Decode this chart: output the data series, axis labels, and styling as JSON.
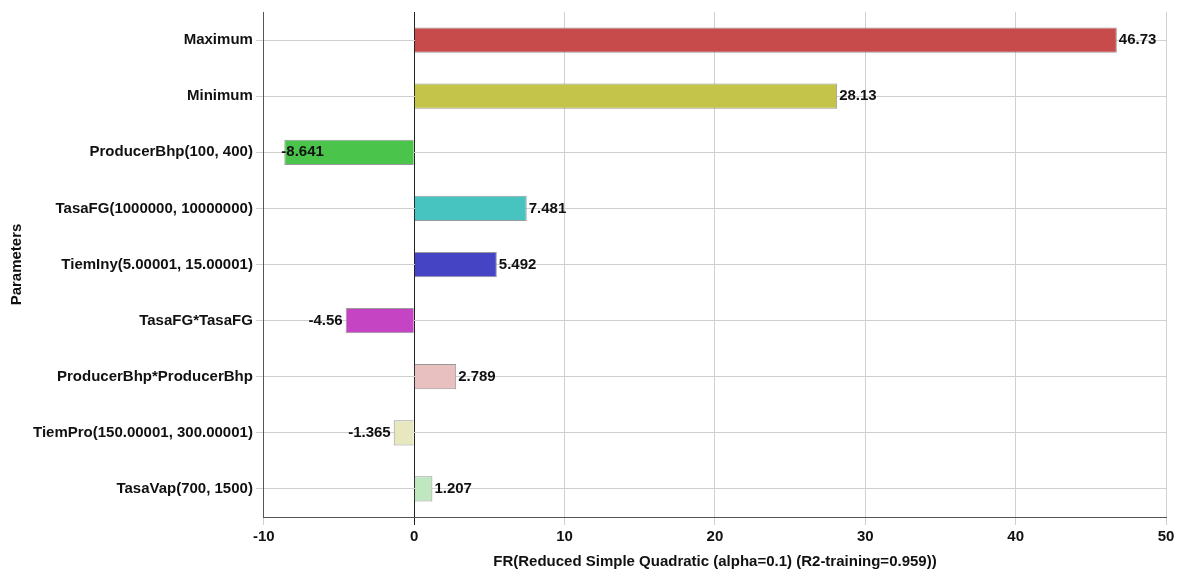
{
  "chart_data": {
    "type": "bar",
    "orientation": "horizontal",
    "xlabel": "FR(Reduced Simple Quadratic (alpha=0.1) (R2-training=0.959))",
    "ylabel": "Parameters",
    "categories": [
      "Maximum",
      "Minimum",
      "ProducerBhp(100, 400)",
      "TasaFG(1000000, 10000000)",
      "TiemIny(5.00001, 15.00001)",
      "TasaFG*TasaFG",
      "ProducerBhp*ProducerBhp",
      "TiemPro(150.00001, 300.00001)",
      "TasaVap(700, 1500)"
    ],
    "values": [
      46.73,
      28.13,
      -8.641,
      7.481,
      5.492,
      -4.56,
      2.789,
      -1.365,
      1.207
    ],
    "colors": [
      "#c84b4b",
      "#c4c44a",
      "#4bc44b",
      "#47c4c0",
      "#4444c4",
      "#c444c4",
      "#e8c0c0",
      "#e8e8c0",
      "#c0e8c0"
    ],
    "xlim": [
      -10,
      50
    ],
    "xticks": [
      -10,
      0,
      10,
      20,
      30,
      40,
      50
    ],
    "grid": true,
    "data_labels": true,
    "legend": false
  }
}
